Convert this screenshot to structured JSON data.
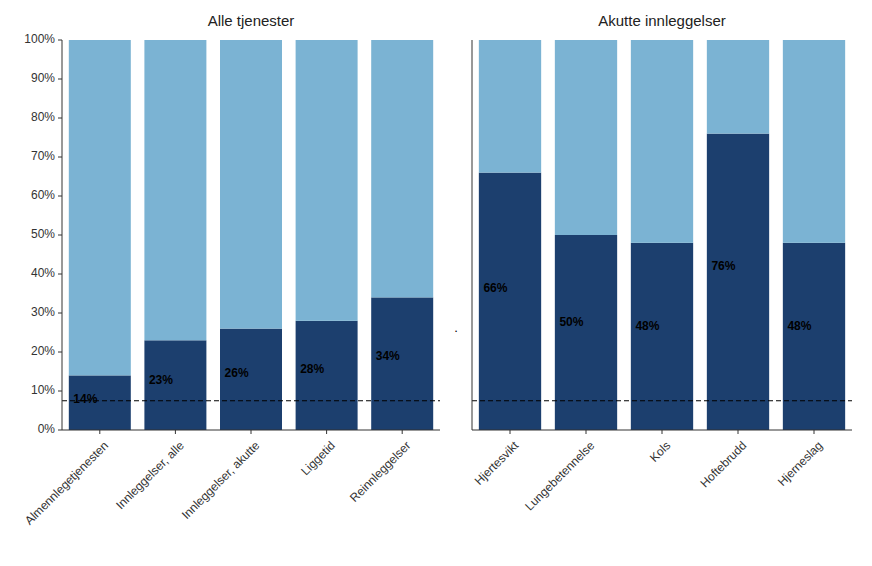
{
  "chart_data": [
    {
      "type": "bar",
      "stacked": true,
      "title": "Alle tjenester",
      "categories": [
        "Almennlegetjenesten",
        "Innleggelser, alle",
        "Innleggelser, akutte",
        "Liggetid",
        "Reinnleggelser"
      ],
      "series": [
        {
          "color": "#1c3f6e",
          "values": [
            14,
            23,
            26,
            28,
            34
          ],
          "data_labels": true,
          "value_labels": [
            "14%",
            "23%",
            "26%",
            "28%",
            "34%"
          ]
        },
        {
          "color": "#7bb3d3",
          "values": [
            86,
            77,
            74,
            72,
            66
          ]
        }
      ],
      "reference_line": 7.5,
      "ylim": [
        0,
        100
      ],
      "yticks": [
        {
          "value": 0,
          "label": "0%"
        },
        {
          "value": 10,
          "label": "10%"
        },
        {
          "value": 20,
          "label": "20%"
        },
        {
          "value": 30,
          "label": "30%"
        },
        {
          "value": 40,
          "label": "40%"
        },
        {
          "value": 50,
          "label": "50%"
        },
        {
          "value": 60,
          "label": "60%"
        },
        {
          "value": 70,
          "label": "70%"
        },
        {
          "value": 80,
          "label": "80%"
        },
        {
          "value": 90,
          "label": "90%"
        },
        {
          "value": 100,
          "label": "100%"
        }
      ],
      "grid": false,
      "annotation": "."
    },
    {
      "type": "bar",
      "stacked": true,
      "title": "Akutte innleggelser",
      "categories": [
        "Hjertesvikt",
        "Lungebetennelse",
        "Kols",
        "Hoftebrudd",
        "Hjerneslag"
      ],
      "series": [
        {
          "color": "#1c3f6e",
          "values": [
            66,
            50,
            48,
            76,
            48
          ],
          "data_labels": true,
          "value_labels": [
            "66%",
            "50%",
            "48%",
            "76%",
            "48%"
          ]
        },
        {
          "color": "#7bb3d3",
          "values": [
            34,
            50,
            52,
            24,
            52
          ]
        }
      ],
      "reference_line": 7.5,
      "ylim": [
        0,
        100
      ],
      "tick_labels": "x",
      "grid": false
    }
  ]
}
